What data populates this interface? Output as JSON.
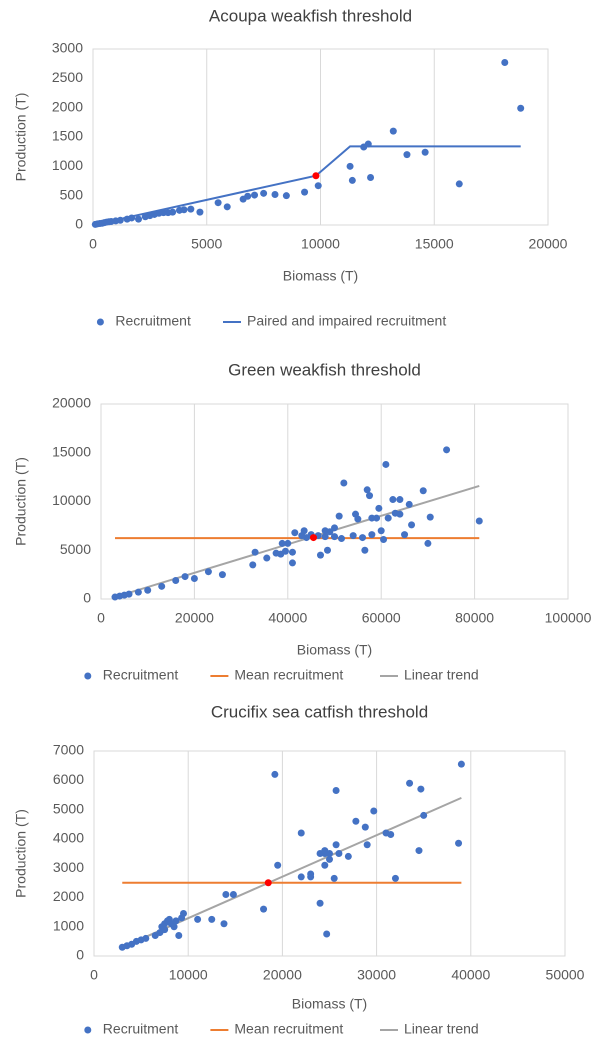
{
  "chart_data": [
    {
      "type": "scatter",
      "title": "Acoupa weakfish threshold",
      "x_label": "Biomass (T)",
      "y_label": "Production (T)",
      "xlim": [
        0,
        20000
      ],
      "ylim": [
        0,
        3000
      ],
      "xticks": [
        0,
        5000,
        10000,
        15000,
        20000
      ],
      "yticks": [
        0,
        500,
        1000,
        1500,
        2000,
        2500,
        3000
      ],
      "grid": "x",
      "series": [
        {
          "name": "Recruitment",
          "color": "#4472c4",
          "kind": "markers",
          "x": [
            100,
            200,
            300,
            400,
            500,
            600,
            700,
            800,
            1000,
            1200,
            1500,
            1700,
            2000,
            2300,
            2500,
            2700,
            2900,
            3100,
            3300,
            3500,
            3800,
            4000,
            4300,
            4700,
            5500,
            5900,
            6600,
            6800,
            7100,
            7500,
            8000,
            8500,
            9300,
            9900,
            11300,
            11400,
            11900,
            12100,
            12200,
            13200,
            13800,
            14600,
            16100,
            18100,
            18800
          ],
          "values": [
            10,
            20,
            25,
            30,
            40,
            50,
            55,
            60,
            70,
            80,
            100,
            120,
            100,
            140,
            160,
            180,
            200,
            210,
            210,
            220,
            250,
            260,
            270,
            220,
            380,
            310,
            440,
            490,
            510,
            540,
            520,
            500,
            560,
            670,
            1000,
            760,
            1330,
            1380,
            810,
            1600,
            1200,
            1240,
            700,
            2770,
            1990
          ]
        },
        {
          "color": "#ff0000",
          "kind": "markers",
          "x": [
            9800
          ],
          "values": [
            840
          ]
        },
        {
          "name": "Paired and impaired recruitment",
          "color": "#4472c4",
          "kind": "line",
          "x": [
            0,
            9800,
            11300,
            18800
          ],
          "values": [
            0,
            840,
            1340,
            1340
          ]
        }
      ]
    },
    {
      "type": "scatter",
      "title": "Green weakfish threshold",
      "x_label": "Biomass (T)",
      "y_label": "Production (T)",
      "xlim": [
        0,
        100000
      ],
      "ylim": [
        0,
        20000
      ],
      "xticks": [
        0,
        20000,
        40000,
        60000,
        80000,
        100000
      ],
      "yticks": [
        0,
        5000,
        10000,
        15000,
        20000
      ],
      "grid": "x",
      "series": [
        {
          "name": "Recruitment",
          "color": "#4472c4",
          "kind": "markers",
          "x": [
            3000,
            4000,
            5000,
            6000,
            8000,
            10000,
            13000,
            16000,
            18000,
            20000,
            23000,
            26000,
            32500,
            33000,
            35500,
            37500,
            38500,
            38800,
            39500,
            40000,
            41000,
            41000,
            41500,
            43000,
            43500,
            44000,
            45000,
            46500,
            47000,
            48000,
            48000,
            48500,
            49000,
            50000,
            50000,
            51000,
            51500,
            52000,
            54000,
            54500,
            55000,
            56000,
            56500,
            57000,
            57500,
            58000,
            58000,
            59000,
            59500,
            60000,
            60500,
            61000,
            61500,
            62500,
            63000,
            64000,
            64000,
            65000,
            66000,
            66500,
            69000,
            70000,
            70500,
            74000,
            81000
          ],
          "values": [
            200,
            300,
            400,
            500,
            700,
            900,
            1300,
            1900,
            2300,
            2100,
            2800,
            2500,
            3500,
            4800,
            4200,
            4700,
            4600,
            5700,
            4900,
            5700,
            3700,
            4800,
            6800,
            6500,
            7000,
            6300,
            6600,
            6500,
            4500,
            7000,
            6400,
            5000,
            6900,
            7300,
            6400,
            8500,
            6200,
            11900,
            6500,
            8700,
            8200,
            6300,
            5000,
            11200,
            10600,
            8300,
            6600,
            8300,
            9300,
            7000,
            6100,
            13800,
            8300,
            10200,
            8800,
            10200,
            8700,
            6600,
            9700,
            7600,
            11100,
            5700,
            8400,
            15300,
            8000
          ]
        },
        {
          "color": "#ff0000",
          "kind": "markers",
          "x": [
            45500
          ],
          "values": [
            6300
          ]
        },
        {
          "name": "Mean recruitment",
          "color": "#ed7d31",
          "kind": "line",
          "x": [
            3000,
            81000
          ],
          "values": [
            6250,
            6250
          ]
        },
        {
          "name": "Linear trend",
          "color": "#a5a5a5",
          "kind": "line",
          "x": [
            3000,
            81000
          ],
          "values": [
            200,
            11600
          ]
        }
      ]
    },
    {
      "type": "scatter",
      "title": "Crucifix sea catfish threshold",
      "x_label": "Biomass (T)",
      "y_label": "Production (T)",
      "xlim": [
        0,
        50000
      ],
      "ylim": [
        0,
        7000
      ],
      "xticks": [
        0,
        10000,
        20000,
        30000,
        40000,
        50000
      ],
      "yticks": [
        0,
        1000,
        2000,
        3000,
        4000,
        5000,
        6000,
        7000
      ],
      "grid": "x",
      "series": [
        {
          "name": "Recruitment",
          "color": "#4472c4",
          "kind": "markers",
          "x": [
            3000,
            3500,
            4000,
            4500,
            5000,
            5500,
            6500,
            7000,
            7200,
            7500,
            7500,
            7800,
            8000,
            8200,
            8500,
            8700,
            9000,
            9300,
            9500,
            11000,
            12500,
            13800,
            14000,
            14800,
            18000,
            19200,
            19500,
            22000,
            22000,
            23000,
            23000,
            24000,
            24000,
            24500,
            24500,
            24500,
            24700,
            25000,
            25000,
            25500,
            25700,
            25700,
            26000,
            27000,
            27800,
            28800,
            29000,
            29700,
            31000,
            31500,
            32000,
            33500,
            34500,
            34700,
            35000,
            38700,
            39000
          ],
          "values": [
            300,
            350,
            400,
            500,
            550,
            600,
            700,
            800,
            1000,
            1100,
            900,
            1200,
            1250,
            1100,
            1000,
            1200,
            700,
            1300,
            1450,
            1250,
            1250,
            1100,
            2100,
            2100,
            1600,
            6200,
            3100,
            2700,
            4200,
            2700,
            2800,
            1800,
            3500,
            3100,
            3500,
            3600,
            750,
            3300,
            3500,
            2650,
            3800,
            5650,
            3500,
            3400,
            4600,
            4400,
            3800,
            4950,
            4200,
            4150,
            2650,
            5900,
            3600,
            5700,
            4800,
            3850,
            6550
          ]
        },
        {
          "color": "#ff0000",
          "kind": "markers",
          "x": [
            18500
          ],
          "values": [
            2500
          ]
        },
        {
          "name": "Mean recruitment",
          "color": "#ed7d31",
          "kind": "line",
          "x": [
            3000,
            39000
          ],
          "values": [
            2500,
            2500
          ]
        },
        {
          "name": "Linear trend",
          "color": "#a5a5a5",
          "kind": "line",
          "x": [
            3000,
            39000
          ],
          "values": [
            300,
            5400
          ]
        }
      ]
    }
  ]
}
